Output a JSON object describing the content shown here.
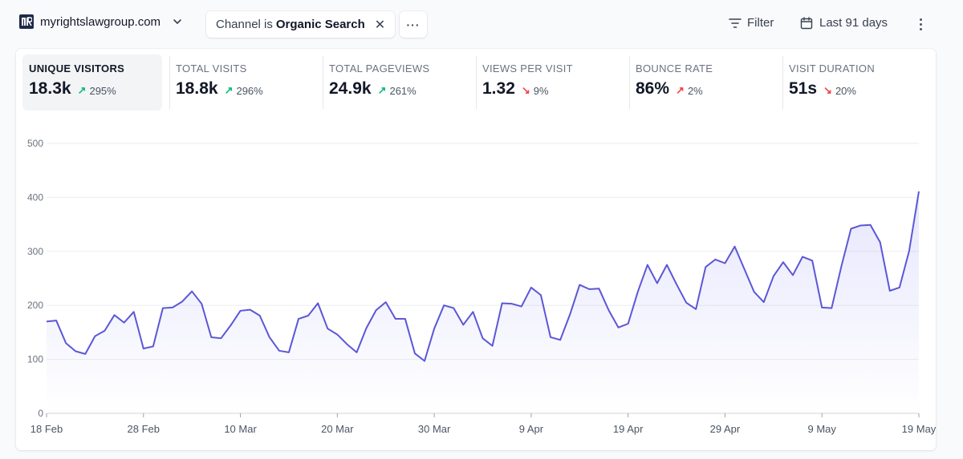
{
  "header": {
    "site_name": "myrightslawgroup.com",
    "site_logo_text": "MR",
    "filter_chip": {
      "prefix": "Channel is",
      "value": "Organic Search"
    },
    "filter_label": "Filter",
    "date_range_label": "Last 91 days"
  },
  "metrics": [
    {
      "label": "UNIQUE VISITORS",
      "value": "18.3k",
      "change": "295%",
      "direction": "up",
      "color": "#10b981",
      "active": true
    },
    {
      "label": "TOTAL VISITS",
      "value": "18.8k",
      "change": "296%",
      "direction": "up",
      "color": "#10b981",
      "active": false
    },
    {
      "label": "TOTAL PAGEVIEWS",
      "value": "24.9k",
      "change": "261%",
      "direction": "up",
      "color": "#10b981",
      "active": false
    },
    {
      "label": "VIEWS PER VISIT",
      "value": "1.32",
      "change": "9%",
      "direction": "down",
      "color": "#ef4444",
      "active": false
    },
    {
      "label": "BOUNCE RATE",
      "value": "86%",
      "change": "2%",
      "direction": "up",
      "color": "#ef4444",
      "active": false
    },
    {
      "label": "VISIT DURATION",
      "value": "51s",
      "change": "20%",
      "direction": "down",
      "color": "#ef4444",
      "active": false
    }
  ],
  "chart_data": {
    "type": "area",
    "ylim": [
      0,
      500
    ],
    "yticks": [
      0,
      100,
      200,
      300,
      400,
      500
    ],
    "x_tick_labels": [
      "18 Feb",
      "28 Feb",
      "10 Mar",
      "20 Mar",
      "30 Mar",
      "9 Apr",
      "19 Apr",
      "29 Apr",
      "9 May",
      "19 May"
    ],
    "x_tick_index": [
      0,
      10,
      20,
      30,
      40,
      50,
      60,
      70,
      80,
      90
    ],
    "line_color": "#5b57d6",
    "values": [
      170,
      172,
      130,
      115,
      110,
      143,
      153,
      182,
      168,
      188,
      120,
      124,
      195,
      196,
      207,
      226,
      203,
      141,
      139,
      163,
      190,
      192,
      181,
      141,
      116,
      113,
      175,
      181,
      204,
      157,
      146,
      128,
      113,
      158,
      191,
      206,
      175,
      175,
      111,
      97,
      157,
      200,
      195,
      164,
      188,
      139,
      125,
      204,
      203,
      198,
      233,
      219,
      141,
      136,
      183,
      238,
      230,
      231,
      191,
      159,
      166,
      225,
      275,
      241,
      275,
      239,
      205,
      193,
      271,
      285,
      278,
      309,
      267,
      225,
      206,
      254,
      280,
      256,
      290,
      283,
      196,
      195,
      272,
      342,
      348,
      349,
      317,
      227,
      233,
      301,
      411
    ]
  }
}
